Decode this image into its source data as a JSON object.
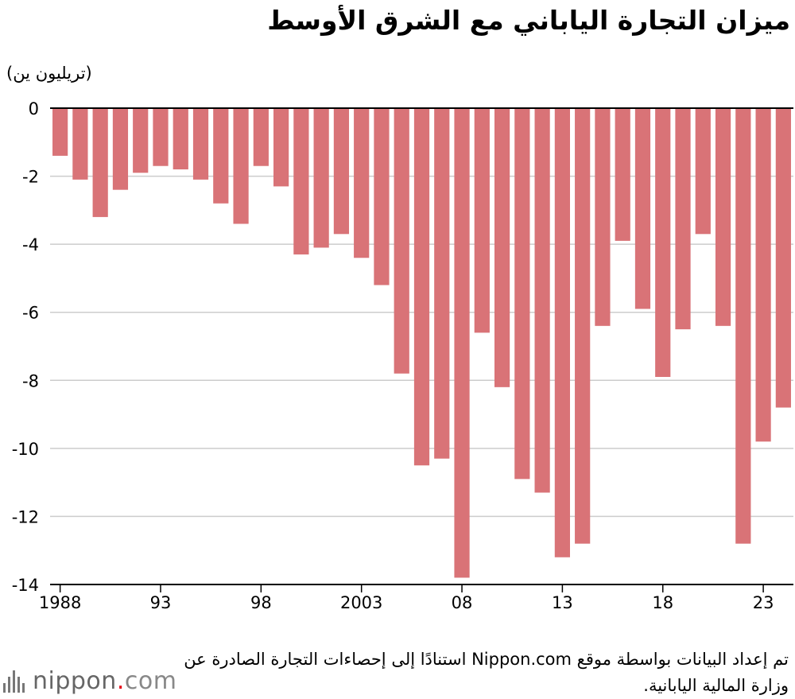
{
  "title": "ميزان التجارة الياباني مع الشرق الأوسط",
  "unit": "(تريليون ين)",
  "source": "تم إعداد البيانات بواسطة موقع Nippon.com استنادًا إلى إحصاءات التجارة الصادرة عن وزارة المالية اليابانية.",
  "logo": {
    "name": "nippon",
    "dot": ".",
    "tld": "com"
  },
  "colors": {
    "bar": "#d97377",
    "grid": "#cccccc",
    "axis": "#000000"
  },
  "chart_data": {
    "type": "bar",
    "x": [
      1988,
      1989,
      1990,
      1991,
      1992,
      1993,
      1994,
      1995,
      1996,
      1997,
      1998,
      1999,
      2000,
      2001,
      2002,
      2003,
      2004,
      2005,
      2006,
      2007,
      2008,
      2009,
      2010,
      2011,
      2012,
      2013,
      2014,
      2015,
      2016,
      2017,
      2018,
      2019,
      2020,
      2021,
      2022,
      2023,
      2024
    ],
    "values": [
      -1.4,
      -2.1,
      -3.2,
      -2.4,
      -1.9,
      -1.7,
      -1.8,
      -2.1,
      -2.8,
      -3.4,
      -1.7,
      -2.3,
      -4.3,
      -4.1,
      -3.7,
      -4.4,
      -5.2,
      -7.8,
      -10.5,
      -10.3,
      -13.8,
      -6.6,
      -8.2,
      -10.9,
      -11.3,
      -13.2,
      -12.8,
      -6.4,
      -3.9,
      -5.9,
      -7.9,
      -6.5,
      -3.7,
      -6.4,
      -12.8,
      -9.8,
      -8.8
    ],
    "xtick_labels": [
      "1988",
      "93",
      "98",
      "2003",
      "08",
      "13",
      "18",
      "23"
    ],
    "xtick_years": [
      1988,
      1993,
      1998,
      2003,
      2008,
      2013,
      2018,
      2023
    ],
    "yticks": [
      0,
      -2,
      -4,
      -6,
      -8,
      -10,
      -12,
      -14
    ],
    "ylim": [
      -14,
      0
    ],
    "grid": true,
    "ylabel": "(تريليون ين)"
  }
}
